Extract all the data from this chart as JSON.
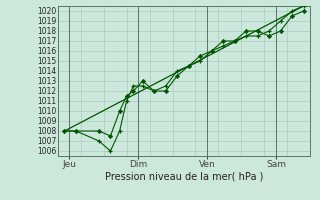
{
  "title": "Pression niveau de la mer( hPa )",
  "bg_color": "#cce8dc",
  "plot_bg": "#cce8dc",
  "grid_color": "#aaccbb",
  "line_color": "#005500",
  "ylim": [
    1005.5,
    1020.5
  ],
  "yticks": [
    1006,
    1007,
    1008,
    1009,
    1010,
    1011,
    1012,
    1013,
    1014,
    1015,
    1016,
    1017,
    1018,
    1019,
    1020
  ],
  "xtick_labels": [
    "Jeu",
    "Dim",
    "Ven",
    "Sam"
  ],
  "xtick_positions": [
    0.5,
    3.5,
    6.5,
    9.5
  ],
  "xminor_positions": [
    0,
    1,
    2,
    3,
    4,
    5,
    6,
    7,
    8,
    9,
    10,
    11
  ],
  "xlim": [
    0,
    11
  ],
  "series1_x": [
    0.3,
    0.8,
    1.8,
    2.3,
    2.7,
    3.0,
    3.3,
    3.7,
    4.2,
    4.7,
    5.2,
    5.7,
    6.2,
    6.7,
    7.2,
    7.7,
    8.2,
    8.7,
    9.2,
    9.7,
    10.2,
    10.7
  ],
  "series1_y": [
    1008.0,
    1008.0,
    1007.0,
    1006.0,
    1008.0,
    1011.0,
    1012.5,
    1012.5,
    1012.0,
    1012.5,
    1014.0,
    1014.5,
    1015.0,
    1016.0,
    1016.5,
    1017.0,
    1017.5,
    1017.5,
    1018.0,
    1019.0,
    1020.0,
    1020.5
  ],
  "series2_x": [
    0.3,
    0.8,
    1.8,
    2.3,
    2.7,
    3.0,
    3.3,
    3.7,
    4.2,
    4.7,
    5.2,
    5.7,
    6.2,
    6.7,
    7.2,
    7.7,
    8.2,
    8.7,
    9.2,
    9.7,
    10.2,
    10.7
  ],
  "series2_y": [
    1008.0,
    1008.0,
    1008.0,
    1007.5,
    1010.0,
    1011.5,
    1012.0,
    1013.0,
    1012.0,
    1012.0,
    1013.5,
    1014.5,
    1015.5,
    1016.0,
    1017.0,
    1017.0,
    1018.0,
    1018.0,
    1017.5,
    1018.0,
    1019.5,
    1020.0
  ],
  "trend_x": [
    0.3,
    10.7
  ],
  "trend_y": [
    1008.0,
    1020.5
  ]
}
